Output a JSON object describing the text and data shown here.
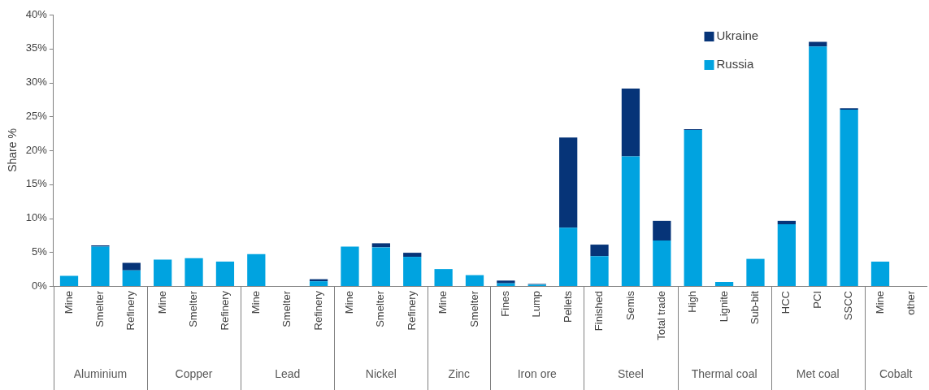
{
  "chart_data": {
    "type": "bar",
    "stacked": true,
    "ylabel": "Share %",
    "categories": [
      "Mine",
      "Smelter",
      "Refinery",
      "Mine",
      "Smelter",
      "Refinery",
      "Mine",
      "Smelter",
      "Refinery",
      "Mine",
      "Smelter",
      "Refinery",
      "Mine",
      "Smelter",
      "Fines",
      "Lump",
      "Pellets",
      "Finished",
      "Semis",
      "Total trade",
      "High",
      "Lignite",
      "Sub-bit",
      "HCC",
      "PCI",
      "SSCC",
      "Mine",
      "other"
    ],
    "series": [
      {
        "name": "Russia",
        "color": "#00a3e0",
        "values": [
          1.5,
          5.8,
          2.3,
          3.9,
          4.1,
          3.6,
          4.7,
          0,
          0.7,
          5.8,
          5.7,
          4.3,
          2.5,
          1.6,
          0.4,
          0.2,
          8.6,
          4.4,
          19.1,
          6.7,
          23.0,
          0.6,
          4.0,
          9.1,
          35.3,
          26.0,
          3.6,
          0
        ]
      },
      {
        "name": "Ukraine",
        "color": "#063478",
        "values": [
          0,
          0.2,
          1.1,
          0,
          0,
          0,
          0,
          0,
          0.3,
          0,
          0.6,
          0.6,
          0,
          0,
          0.4,
          0.1,
          13.3,
          1.7,
          10.0,
          2.9,
          0.1,
          0,
          0,
          0.5,
          0.7,
          0.2,
          0,
          0
        ]
      }
    ],
    "ylim": [
      0,
      40
    ],
    "yticks": [
      {
        "value": 0,
        "label": "0%"
      },
      {
        "value": 5,
        "label": "5%"
      },
      {
        "value": 10,
        "label": "10%"
      },
      {
        "value": 15,
        "label": "15%"
      },
      {
        "value": 20,
        "label": "20%"
      },
      {
        "value": 25,
        "label": "25%"
      },
      {
        "value": 30,
        "label": "30%"
      },
      {
        "value": 35,
        "label": "35%"
      },
      {
        "value": 40,
        "label": "40%"
      }
    ],
    "grid": false,
    "legend": "top right",
    "annotations": [
      "Aluminium",
      "Copper",
      "Lead",
      "Nickel",
      "Zinc",
      "Iron ore",
      "Steel",
      "Thermal coal",
      "Met coal",
      "Cobalt"
    ]
  }
}
